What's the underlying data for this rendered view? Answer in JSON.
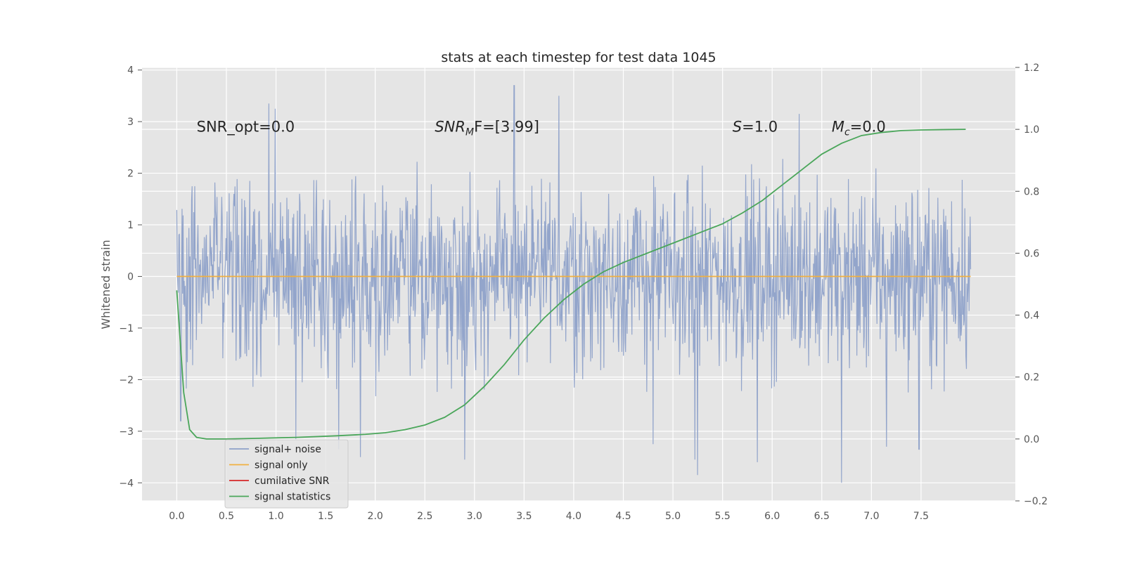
{
  "chart_data": {
    "type": "line",
    "title": "stats at each timestep for test data 1045",
    "xlabel": "",
    "ylabel": "Whitened strain",
    "y2label": "",
    "xlim": [
      -0.35,
      8.45
    ],
    "ylim": [
      -4.35,
      4.05
    ],
    "y2lim": [
      -0.2,
      1.2
    ],
    "x_ticks": [
      "0.0",
      "0.5",
      "1.0",
      "1.5",
      "2.0",
      "2.5",
      "3.0",
      "3.5",
      "4.0",
      "4.5",
      "5.0",
      "5.5",
      "6.0",
      "6.5",
      "7.0",
      "7.5"
    ],
    "y_ticks": [
      "4",
      "3",
      "2",
      "1",
      "0",
      "−1",
      "−2",
      "−3",
      "−4"
    ],
    "y2_ticks": [
      "1.2",
      "1.0",
      "0.8",
      "0.6",
      "0.4",
      "0.2",
      "0.0",
      "−0.2"
    ],
    "grid": true,
    "legend_placement": "lower-left",
    "colors": {
      "noise": "#8ea1c9",
      "signal": "#f0b040",
      "snr": "#d62728",
      "stats": "#4aa65a",
      "background": "#e5e5e5",
      "grid": "#ffffff"
    },
    "annotations": [
      {
        "id": "snr-opt",
        "text": "SNR_opt=0.0",
        "x": 0.2,
        "y": 2.9
      },
      {
        "id": "snr-mf",
        "prefix": "SNR",
        "sub": "M",
        "suffix": "F=[3.99]",
        "x": 2.6,
        "y": 2.9
      },
      {
        "id": "s",
        "prefix": "S",
        "sub": "",
        "suffix": "=1.0",
        "x": 5.6,
        "y": 2.9
      },
      {
        "id": "mc",
        "prefix": "M",
        "sub": "c",
        "suffix": "=0.0",
        "x": 6.6,
        "y": 2.9
      }
    ],
    "noise_series": {
      "name": "signal+ noise",
      "x_range": [
        0.0,
        8.0
      ],
      "typical_amplitude": 1.6,
      "extremes": [
        {
          "x": 0.04,
          "y": -2.8
        },
        {
          "x": 0.93,
          "y": 3.35
        },
        {
          "x": 0.99,
          "y": 3.25
        },
        {
          "x": 1.2,
          "y": -3.15
        },
        {
          "x": 1.63,
          "y": -3.35
        },
        {
          "x": 1.85,
          "y": -3.5
        },
        {
          "x": 2.9,
          "y": -3.55
        },
        {
          "x": 3.4,
          "y": 3.7
        },
        {
          "x": 3.85,
          "y": 3.5
        },
        {
          "x": 4.8,
          "y": -3.25
        },
        {
          "x": 5.22,
          "y": -3.55
        },
        {
          "x": 5.25,
          "y": -3.85
        },
        {
          "x": 5.85,
          "y": -3.6
        },
        {
          "x": 6.7,
          "y": -4.0
        },
        {
          "x": 6.27,
          "y": 3.15
        },
        {
          "x": 7.15,
          "y": -3.3
        },
        {
          "x": 7.48,
          "y": -3.35
        }
      ]
    },
    "series": [
      {
        "name": "signal only",
        "color": "#f0b040",
        "axis": "left",
        "x": [
          0.0,
          8.0
        ],
        "values": [
          0.0,
          0.0
        ]
      },
      {
        "name": "cumilative SNR",
        "color": "#d62728",
        "axis": "left",
        "x": [],
        "values": []
      },
      {
        "name": "signal statistics",
        "color": "#4aa65a",
        "axis": "right",
        "x": [
          0.0,
          0.07,
          0.13,
          0.2,
          0.3,
          0.5,
          0.8,
          1.2,
          1.6,
          1.9,
          2.1,
          2.3,
          2.5,
          2.7,
          2.9,
          3.1,
          3.3,
          3.5,
          3.7,
          3.9,
          4.1,
          4.3,
          4.5,
          4.7,
          4.9,
          5.1,
          5.3,
          5.5,
          5.7,
          5.9,
          6.1,
          6.3,
          6.5,
          6.7,
          6.9,
          7.1,
          7.3,
          7.5,
          7.7,
          7.95
        ],
        "values": [
          0.48,
          0.15,
          0.03,
          0.005,
          0.0,
          0.0,
          0.002,
          0.005,
          0.01,
          0.015,
          0.02,
          0.03,
          0.045,
          0.07,
          0.11,
          0.17,
          0.24,
          0.32,
          0.39,
          0.45,
          0.5,
          0.54,
          0.57,
          0.595,
          0.62,
          0.645,
          0.67,
          0.695,
          0.73,
          0.77,
          0.82,
          0.87,
          0.92,
          0.955,
          0.98,
          0.99,
          0.996,
          0.998,
          0.999,
          1.0
        ]
      }
    ]
  }
}
